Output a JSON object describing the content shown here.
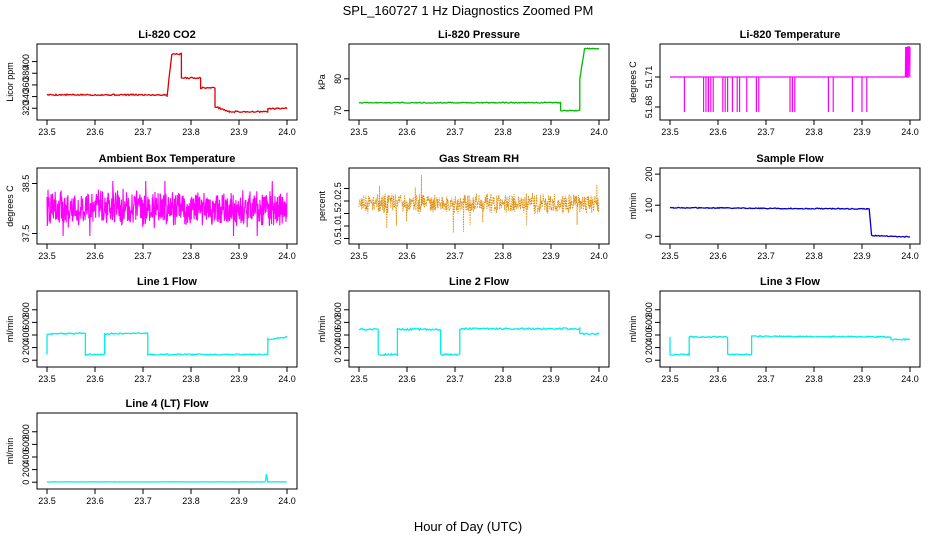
{
  "title": "SPL_160727  1 Hz Diagnostics Zoomed PM",
  "xlabel": "Hour of Day (UTC)",
  "chart_data": [
    {
      "type": "line",
      "title": "Li-820 CO2",
      "ylabel": "Licor ppm",
      "color": "#dd0000",
      "xlim": [
        23.5,
        24.0
      ],
      "ylim": [
        305,
        425
      ],
      "xticks": [
        "23.5",
        "23.6",
        "23.7",
        "23.8",
        "23.9",
        "24.0"
      ],
      "yticks": [
        "320",
        "340",
        "360",
        "380",
        "400"
      ],
      "segments": [
        [
          23.5,
          343
        ],
        [
          23.75,
          343
        ],
        [
          23.75,
          340
        ],
        [
          23.76,
          413
        ],
        [
          23.78,
          413
        ],
        [
          23.78,
          372
        ],
        [
          23.82,
          372
        ],
        [
          23.82,
          355
        ],
        [
          23.85,
          355
        ],
        [
          23.85,
          323
        ],
        [
          23.86,
          320
        ],
        [
          23.88,
          314
        ],
        [
          23.96,
          314
        ],
        [
          23.96,
          319
        ],
        [
          24.0,
          320
        ]
      ],
      "noise": 1.2
    },
    {
      "type": "line",
      "title": "Li-820 Pressure",
      "ylabel": "kPa",
      "color": "#00bb00",
      "xlim": [
        23.5,
        24.0
      ],
      "ylim": [
        68,
        90
      ],
      "xticks": [
        "23.5",
        "23.6",
        "23.7",
        "23.8",
        "23.9",
        "24.0"
      ],
      "yticks": [
        "70",
        "80"
      ],
      "segments": [
        [
          23.5,
          72.5
        ],
        [
          23.92,
          72.5
        ],
        [
          23.92,
          70
        ],
        [
          23.96,
          70
        ],
        [
          23.96,
          80
        ],
        [
          23.97,
          89.5
        ],
        [
          24.0,
          89.5
        ]
      ],
      "noise": 0.15
    },
    {
      "type": "spikes",
      "title": "Li-820 Temperature",
      "ylabel": "degrees C",
      "color": "#ff00ff",
      "xlim": [
        23.5,
        24.0
      ],
      "ylim": [
        51.67,
        51.74
      ],
      "xticks": [
        "23.5",
        "23.6",
        "23.7",
        "23.8",
        "23.9",
        "24.0"
      ],
      "yticks": [
        "51.68",
        "51.71"
      ],
      "base": 51.71,
      "low": 51.675,
      "high": 51.74,
      "spike_start": 23.99,
      "spikes_x": [
        23.53,
        23.57,
        23.575,
        23.58,
        23.585,
        23.59,
        23.61,
        23.615,
        23.62,
        23.63,
        23.64,
        23.645,
        23.66,
        23.68,
        23.685,
        23.75,
        23.755,
        23.76,
        23.83,
        23.84,
        23.88,
        23.9,
        23.91
      ]
    },
    {
      "type": "noise",
      "title": "Ambient Box Temperature",
      "ylabel": "degrees C",
      "color": "#ff00ff",
      "xlim": [
        23.5,
        24.0
      ],
      "ylim": [
        37.35,
        38.75
      ],
      "xticks": [
        "23.5",
        "23.6",
        "23.7",
        "23.8",
        "23.9",
        "24.0"
      ],
      "yticks": [
        "37.5",
        "38.5"
      ],
      "center": 38.0,
      "amplitude": 0.32,
      "seed": 7
    },
    {
      "type": "noise-points",
      "title": "Gas Stream RH",
      "ylabel": "percent",
      "color": "#dd8800",
      "xlim": [
        23.5,
        24.0
      ],
      "ylim": [
        0.4,
        3.2
      ],
      "xticks": [
        "23.5",
        "23.6",
        "23.7",
        "23.8",
        "23.9",
        "24.0"
      ],
      "yticks": [
        "0.5",
        "1.0",
        "1.5",
        "2.0",
        "2.5"
      ],
      "center": 1.9,
      "amplitude": 0.35,
      "seed": 11
    },
    {
      "type": "line",
      "title": "Sample Flow",
      "ylabel": "ml/min",
      "color": "#0000cc",
      "xlim": [
        23.5,
        24.0
      ],
      "ylim": [
        -15,
        210
      ],
      "xticks": [
        "23.5",
        "23.6",
        "23.7",
        "23.8",
        "23.9",
        "24.0"
      ],
      "yticks": [
        "0",
        "100",
        "200"
      ],
      "segments": [
        [
          23.5,
          92
        ],
        [
          23.91,
          88
        ],
        [
          23.915,
          88
        ],
        [
          23.92,
          3
        ],
        [
          24.0,
          -2
        ]
      ],
      "noise": 1.5
    },
    {
      "type": "line",
      "title": "Line 1 Flow",
      "ylabel": "ml/min",
      "color": "#00eeee",
      "xlim": [
        23.5,
        24.0
      ],
      "ylim": [
        -60,
        1050
      ],
      "xticks": [
        "23.5",
        "23.6",
        "23.7",
        "23.8",
        "23.9",
        "24.0"
      ],
      "yticks": [
        "0",
        "200",
        "400",
        "600",
        "800"
      ],
      "segments": [
        [
          23.5,
          90
        ],
        [
          23.5,
          410
        ],
        [
          23.51,
          410
        ],
        [
          23.51,
          420
        ],
        [
          23.58,
          430
        ],
        [
          23.58,
          90
        ],
        [
          23.62,
          90
        ],
        [
          23.62,
          420
        ],
        [
          23.71,
          430
        ],
        [
          23.71,
          90
        ],
        [
          23.96,
          90
        ],
        [
          23.96,
          330
        ],
        [
          24.0,
          370
        ]
      ],
      "noise": 10
    },
    {
      "type": "line",
      "title": "Line 2 Flow",
      "ylabel": "ml/min",
      "color": "#00eeee",
      "xlim": [
        23.5,
        24.0
      ],
      "ylim": [
        -60,
        1050
      ],
      "xticks": [
        "23.5",
        "23.6",
        "23.7",
        "23.8",
        "23.9",
        "24.0"
      ],
      "yticks": [
        "0",
        "200",
        "400",
        "600",
        "800"
      ],
      "segments": [
        [
          23.5,
          490
        ],
        [
          23.54,
          490
        ],
        [
          23.54,
          90
        ],
        [
          23.58,
          90
        ],
        [
          23.58,
          490
        ],
        [
          23.67,
          490
        ],
        [
          23.67,
          90
        ],
        [
          23.71,
          90
        ],
        [
          23.71,
          500
        ],
        [
          23.96,
          500
        ],
        [
          23.96,
          420
        ],
        [
          24.0,
          420
        ]
      ],
      "noise": 14
    },
    {
      "type": "line",
      "title": "Line 3 Flow",
      "ylabel": "ml/min",
      "color": "#00eeee",
      "xlim": [
        23.5,
        24.0
      ],
      "ylim": [
        -60,
        1050
      ],
      "xticks": [
        "23.5",
        "23.6",
        "23.7",
        "23.8",
        "23.9",
        "24.0"
      ],
      "yticks": [
        "0",
        "200",
        "400",
        "600",
        "800"
      ],
      "segments": [
        [
          23.5,
          370
        ],
        [
          23.5,
          90
        ],
        [
          23.54,
          90
        ],
        [
          23.54,
          370
        ],
        [
          23.62,
          370
        ],
        [
          23.62,
          90
        ],
        [
          23.67,
          90
        ],
        [
          23.67,
          380
        ],
        [
          23.96,
          370
        ],
        [
          23.96,
          330
        ],
        [
          24.0,
          330
        ]
      ],
      "noise": 10
    },
    {
      "type": "line",
      "title": "Line 4 (LT) Flow",
      "ylabel": "ml/min",
      "color": "#00eeee",
      "xlim": [
        23.5,
        24.0
      ],
      "ylim": [
        -60,
        1050
      ],
      "xticks": [
        "23.5",
        "23.6",
        "23.7",
        "23.8",
        "23.9",
        "24.0"
      ],
      "yticks": [
        "0",
        "200",
        "400",
        "600",
        "800"
      ],
      "segments": [
        [
          23.5,
          5
        ],
        [
          23.955,
          5
        ],
        [
          23.957,
          130
        ],
        [
          23.96,
          5
        ],
        [
          24.0,
          5
        ]
      ],
      "noise": 2
    }
  ]
}
